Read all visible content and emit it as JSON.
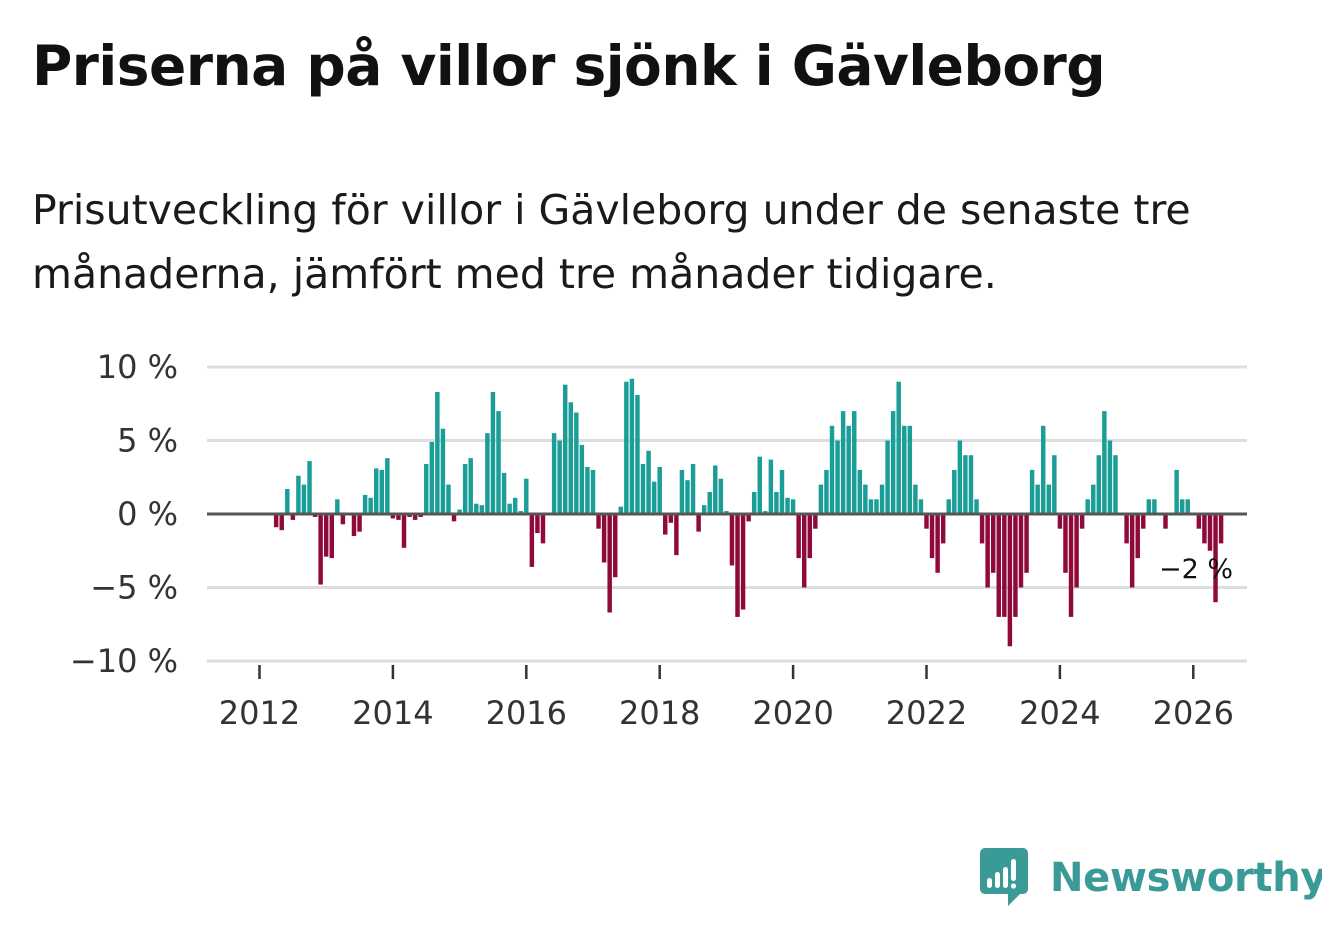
{
  "title": "Priserna på villor sjönk i Gävleborg",
  "subtitle": "Prisutveckling för villor i Gävleborg under de senaste tre månaderna, jämfört med tre månader tidigare.",
  "brand": {
    "name": "Newsworthy",
    "icon": "newsworthy-logo-icon",
    "color": "#3a9a97"
  },
  "colors": {
    "positive": "#1b9e97",
    "negative": "#8f0a3b",
    "zero_line": "#555555",
    "grid": "#dddddd"
  },
  "chart_data": {
    "type": "bar",
    "title": "Priserna på villor sjönk i Gävleborg",
    "xlabel": "",
    "ylabel": "",
    "ylim": [
      -10,
      10
    ],
    "yticks": [
      10,
      5,
      0,
      -5,
      -10
    ],
    "ytick_labels": [
      "10 %",
      "5 %",
      "0 %",
      "−5 %",
      "−10 %"
    ],
    "xticks": [
      2012,
      2014,
      2016,
      2018,
      2020,
      2022,
      2024,
      2026
    ],
    "xtick_labels": [
      "2012",
      "2014",
      "2016",
      "2018",
      "2020",
      "2022",
      "2024",
      "2026"
    ],
    "x_start": 2012,
    "x_step_months": 1,
    "end_label": "−2 %",
    "series": [
      {
        "name": "Prisutveckling",
        "values": [
          -0.9,
          -1.1,
          1.7,
          -0.4,
          2.6,
          2.0,
          3.6,
          -0.2,
          -4.8,
          -2.9,
          -3.0,
          1.0,
          -0.7,
          -0.1,
          -1.5,
          -1.2,
          1.3,
          1.1,
          3.1,
          3.0,
          3.8,
          -0.3,
          -0.4,
          -2.3,
          -0.2,
          -0.4,
          -0.2,
          3.4,
          4.9,
          8.3,
          5.8,
          2.0,
          -0.5,
          0.3,
          3.4,
          3.8,
          0.7,
          0.6,
          5.5,
          8.3,
          7.0,
          2.8,
          0.7,
          1.1,
          0.2,
          2.4,
          -3.6,
          -1.3,
          -2.0,
          0.1,
          5.5,
          5.0,
          8.8,
          7.6,
          6.9,
          4.7,
          3.2,
          3.0,
          -1.0,
          -3.3,
          -6.7,
          -4.3,
          0.5,
          9.0,
          9.2,
          8.1,
          3.4,
          4.3,
          2.2,
          3.2,
          -1.4,
          -0.6,
          -2.8,
          3.0,
          2.3,
          3.4,
          -1.2,
          0.6,
          1.5,
          3.3,
          2.4,
          0.2,
          -3.5,
          -7.0,
          -6.5,
          -0.5,
          1.5,
          3.9,
          0.2,
          3.7,
          1.5,
          3.0,
          1.1,
          1.0,
          -3.0,
          -5.0,
          -3.0,
          -1.0,
          2.0,
          3.0,
          6.0,
          5.0,
          7.0,
          6.0,
          7.0,
          3.0,
          2.0,
          1.0,
          1.0,
          2.0,
          5.0,
          7.0,
          9.0,
          6.0,
          6.0,
          2.0,
          1.0,
          -1.0,
          -3.0,
          -4.0,
          -2.0,
          1.0,
          3.0,
          5.0,
          4.0,
          4.0,
          1.0,
          -2.0,
          -5.0,
          -4.0,
          -7.0,
          -7.0,
          -9.0,
          -7.0,
          -5.0,
          -4.0,
          3.0,
          2.0,
          6.0,
          2.0,
          4.0,
          -1.0,
          -4.0,
          -7.0,
          -5.0,
          -1.0,
          1.0,
          2.0,
          4.0,
          7.0,
          5.0,
          4.0,
          0.0,
          -2.0,
          -5.0,
          -3.0,
          -1.0,
          1.0,
          1.0,
          0.0,
          -1.0,
          0.0,
          3.0,
          1.0,
          1.0,
          0.0,
          -1.0,
          -2.0,
          -2.5,
          -6.0,
          -2.0
        ]
      }
    ]
  }
}
